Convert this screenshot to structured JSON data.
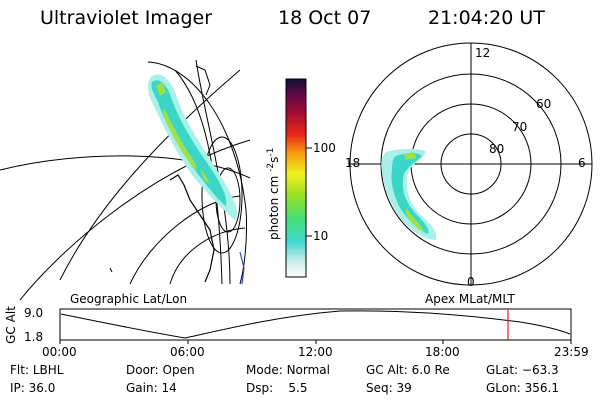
{
  "header": {
    "title": "Ultraviolet Imager",
    "date": "18 Oct 07",
    "time": "21:04:20 UT"
  },
  "colorbar": {
    "unit_label": "photon cm",
    "unit_sup1": "-2",
    "unit_mid": "s",
    "unit_sup2": "-1",
    "ticks": [
      "100",
      "10"
    ]
  },
  "polar": {
    "labels": {
      "top": "12",
      "bottom": "0",
      "left": "18",
      "right": "6",
      "lat60": "60",
      "lat70": "70",
      "lat80": "80"
    }
  },
  "map_labels": {
    "left": "Geographic Lat/Lon",
    "right": "Apex MLat/MLT"
  },
  "altitude_plot": {
    "ylabel": "GC Alt",
    "ymax": "9.0",
    "ymin": "1.8",
    "xticks": [
      "00:00",
      "06:00",
      "12:00",
      "18:00",
      "23:59"
    ]
  },
  "status": {
    "row1": [
      {
        "label": "Flt:",
        "value": "LBHL"
      },
      {
        "label": "Door:",
        "value": "Open"
      },
      {
        "label": "Mode:",
        "value": "Normal"
      },
      {
        "label": "GC Alt:",
        "value": "6.0 Re"
      },
      {
        "label": "GLat:",
        "value": "−63.3"
      }
    ],
    "row2": [
      {
        "label": "IP:",
        "value": "36.0"
      },
      {
        "label": "Gain:",
        "value": "14"
      },
      {
        "label": "Dsp:",
        "value": "5.5"
      },
      {
        "label": "Seq:",
        "value": "39"
      },
      {
        "label": "GLon:",
        "value": "356.1"
      }
    ]
  },
  "colors": {
    "cursor": "#e0202a",
    "aurora_low": "#a8f0e8",
    "aurora_mid": "#3bd6c8",
    "aurora_high": "#9ee04a"
  }
}
